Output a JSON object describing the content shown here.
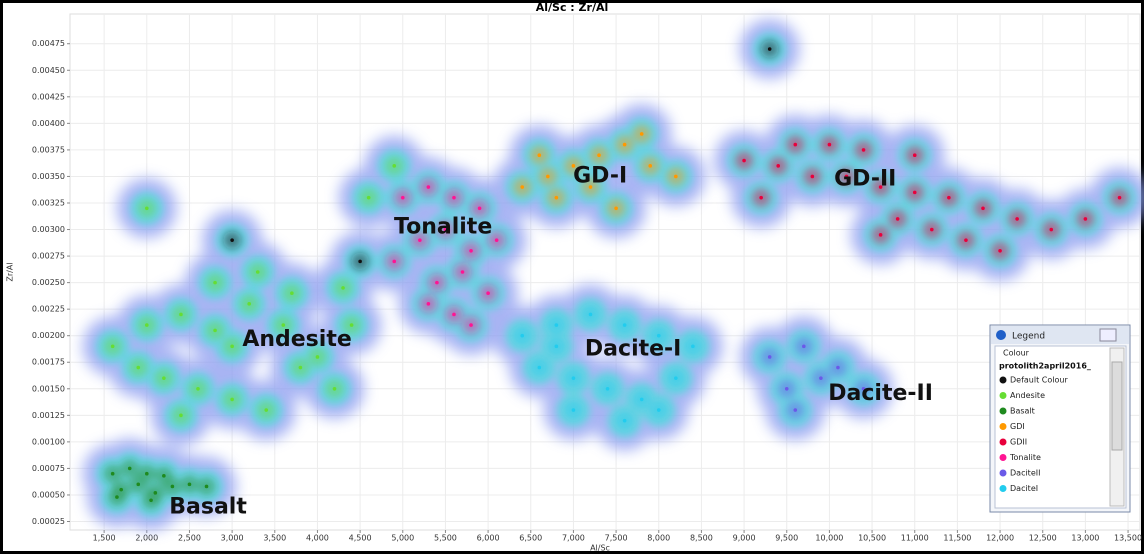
{
  "chart_data": {
    "type": "density-scatter",
    "title": "Al/Sc : Zr/Al",
    "xlabel": "Al/Sc",
    "ylabel": "Zr/Al",
    "xlim": [
      1100,
      13640
    ],
    "ylim": [
      0.00017,
      0.00503
    ],
    "xticks": [
      {
        "value": 1500,
        "label": "1,500"
      },
      {
        "value": 2000,
        "label": "2,000"
      },
      {
        "value": 2500,
        "label": "2,500"
      },
      {
        "value": 3000,
        "label": "3,000"
      },
      {
        "value": 3500,
        "label": "3,500"
      },
      {
        "value": 4000,
        "label": "4,000"
      },
      {
        "value": 4500,
        "label": "4,500"
      },
      {
        "value": 5000,
        "label": "5,000"
      },
      {
        "value": 5500,
        "label": "5,500"
      },
      {
        "value": 6000,
        "label": "6,000"
      },
      {
        "value": 6500,
        "label": "6,500"
      },
      {
        "value": 7000,
        "label": "7,000"
      },
      {
        "value": 7500,
        "label": "7,500"
      },
      {
        "value": 8000,
        "label": "8,000"
      },
      {
        "value": 8500,
        "label": "8,500"
      },
      {
        "value": 9000,
        "label": "9,000"
      },
      {
        "value": 9500,
        "label": "9,500"
      },
      {
        "value": 10000,
        "label": "10,000"
      },
      {
        "value": 10500,
        "label": "10,500"
      },
      {
        "value": 11000,
        "label": "11,000"
      },
      {
        "value": 11500,
        "label": "11,500"
      },
      {
        "value": 12000,
        "label": "12,000"
      },
      {
        "value": 12500,
        "label": "12,500"
      },
      {
        "value": 13000,
        "label": "13,000"
      },
      {
        "value": 13500,
        "label": "13,500"
      }
    ],
    "yticks": [
      0.00025,
      {
        "value": 0.0005,
        "label": "0.00050"
      },
      0.00075,
      {
        "value": 0.001,
        "label": "0.00100"
      },
      0.00125,
      {
        "value": 0.0015,
        "label": "0.00150"
      },
      0.00175,
      {
        "value": 0.002,
        "label": "0.00200"
      },
      0.00225,
      {
        "value": 0.0025,
        "label": "0.00250"
      },
      0.00275,
      {
        "value": 0.003,
        "label": "0.00300"
      },
      0.00325,
      {
        "value": 0.0035,
        "label": "0.00350"
      },
      0.00375,
      {
        "value": 0.004,
        "label": "0.00400"
      },
      0.00425,
      {
        "value": 0.0045,
        "label": "0.00450"
      },
      0.00475
    ],
    "grid": true,
    "series": [
      {
        "name": "Default Colour",
        "color": "#111111",
        "x": [
          3000,
          4500,
          9300
        ],
        "values": [
          0.0029,
          0.0027,
          0.0047
        ]
      },
      {
        "name": "Andesite",
        "color": "#66dd33",
        "x": [
          1600,
          2000,
          2400,
          2800,
          3200,
          3600,
          4000,
          4400,
          2200,
          2600,
          3000,
          3400,
          3800,
          4200,
          2800,
          3300,
          3700,
          2400,
          3000,
          4300,
          1900,
          4600,
          4900,
          2000
        ],
        "values": [
          0.0019,
          0.0021,
          0.0022,
          0.00205,
          0.0023,
          0.0021,
          0.0018,
          0.0021,
          0.0016,
          0.0015,
          0.0014,
          0.0013,
          0.0017,
          0.0015,
          0.0025,
          0.0026,
          0.0024,
          0.00125,
          0.0019,
          0.00245,
          0.0017,
          0.0033,
          0.0036,
          0.0032
        ]
      },
      {
        "name": "Basalt",
        "color": "#1f8a1f",
        "x": [
          1600,
          1800,
          2000,
          2200,
          1700,
          1900,
          2100,
          2300,
          1650,
          2050,
          2500,
          2700
        ],
        "values": [
          0.0007,
          0.00075,
          0.0007,
          0.00068,
          0.00055,
          0.0006,
          0.00052,
          0.00058,
          0.00048,
          0.00045,
          0.0006,
          0.00058
        ]
      },
      {
        "name": "GDI",
        "color": "#ff9900",
        "x": [
          6400,
          6700,
          7000,
          7300,
          7600,
          7900,
          6800,
          7200,
          7500,
          6600,
          7800,
          8200
        ],
        "values": [
          0.0034,
          0.0035,
          0.0036,
          0.0037,
          0.0038,
          0.0036,
          0.0033,
          0.0034,
          0.0032,
          0.0037,
          0.0039,
          0.0035
        ]
      },
      {
        "name": "GDII",
        "color": "#e8003c",
        "x": [
          9000,
          9400,
          9800,
          10200,
          10600,
          11000,
          11400,
          11800,
          12200,
          12600,
          13000,
          9600,
          10000,
          10400,
          10800,
          11200,
          11600,
          12000,
          10600,
          11000,
          9200,
          13400
        ],
        "values": [
          0.00365,
          0.0036,
          0.0035,
          0.0035,
          0.0034,
          0.00335,
          0.0033,
          0.0032,
          0.0031,
          0.003,
          0.0031,
          0.0038,
          0.0038,
          0.00375,
          0.0031,
          0.003,
          0.0029,
          0.0028,
          0.00295,
          0.0037,
          0.0033,
          0.0033
        ]
      },
      {
        "name": "Tonalite",
        "color": "#ff1493",
        "x": [
          5000,
          5300,
          5600,
          5900,
          5200,
          5500,
          5800,
          6100,
          5400,
          5700,
          6000,
          5600,
          5800,
          4900,
          5300
        ],
        "values": [
          0.0033,
          0.0034,
          0.0033,
          0.0032,
          0.0029,
          0.003,
          0.0028,
          0.0029,
          0.0025,
          0.0026,
          0.0024,
          0.0022,
          0.0021,
          0.0027,
          0.0023
        ]
      },
      {
        "name": "DaciteII",
        "color": "#6a5ae8",
        "x": [
          9300,
          9700,
          10100,
          9900,
          9500,
          10400,
          9600
        ],
        "values": [
          0.0018,
          0.0019,
          0.0017,
          0.0016,
          0.0015,
          0.0015,
          0.0013
        ]
      },
      {
        "name": "DaciteI",
        "color": "#22ccee",
        "x": [
          6400,
          6800,
          7200,
          7600,
          8000,
          8400,
          6600,
          7000,
          7400,
          7800,
          8200,
          7000,
          7600,
          8000,
          6800
        ],
        "values": [
          0.002,
          0.0021,
          0.0022,
          0.0021,
          0.002,
          0.0019,
          0.0017,
          0.0016,
          0.0015,
          0.0014,
          0.0016,
          0.0013,
          0.0012,
          0.0013,
          0.0019
        ]
      }
    ],
    "annotations": [
      {
        "text": "GD-II",
        "x": 10420,
        "y": 0.00347
      },
      {
        "text": "GD-I",
        "x": 7313,
        "y": 0.0035
      },
      {
        "text": "Tonalite",
        "x": 5473,
        "y": 0.00302
      },
      {
        "text": "Andesite",
        "x": 3761,
        "y": 0.00196
      },
      {
        "text": "Dacite-I",
        "x": 7700,
        "y": 0.00187
      },
      {
        "text": "Dacite-II",
        "x": 10600,
        "y": 0.00145
      },
      {
        "text": "Basalt",
        "x": 2718,
        "y": 0.00038
      }
    ],
    "legend": {
      "title": "Legend",
      "header": "Colour",
      "dataset": "protolith2april2016_"
    }
  }
}
